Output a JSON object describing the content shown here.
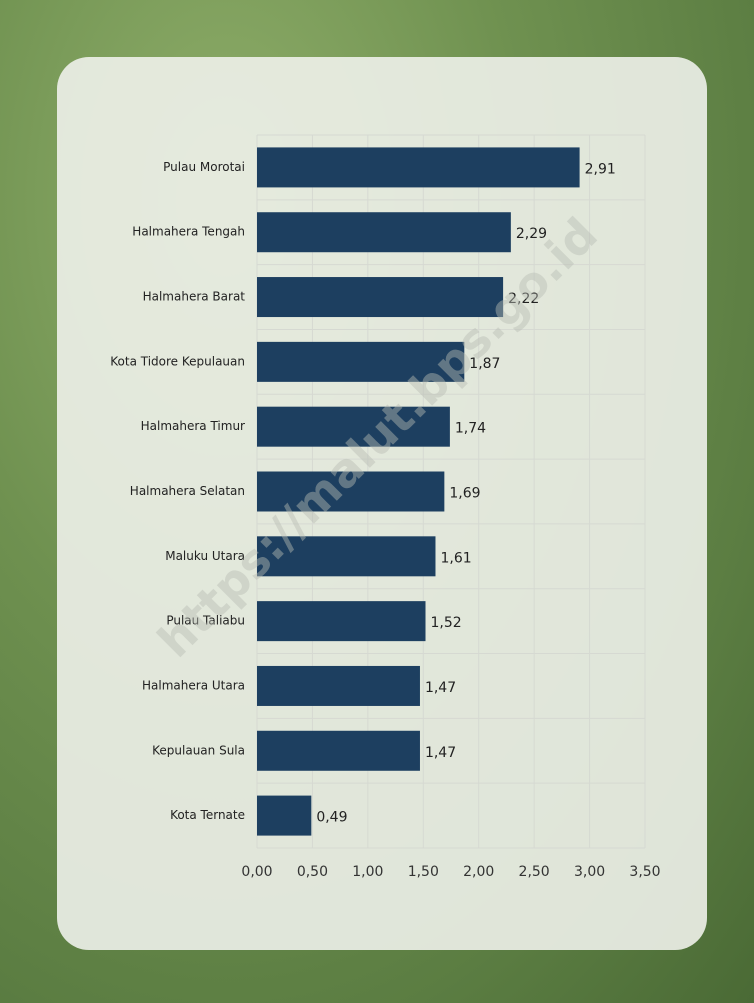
{
  "chart_data": {
    "type": "bar",
    "orientation": "horizontal",
    "categories": [
      "Pulau Morotai",
      "Halmahera Tengah",
      "Halmahera Barat",
      "Kota Tidore Kepulauan",
      "Halmahera Timur",
      "Halmahera Selatan",
      "Maluku Utara",
      "Pulau Taliabu",
      "Halmahera Utara",
      "Kepulauan Sula",
      "Kota Ternate"
    ],
    "values": [
      2.91,
      2.29,
      2.22,
      1.87,
      1.74,
      1.69,
      1.61,
      1.52,
      1.47,
      1.47,
      0.49
    ],
    "value_labels": [
      "2,91",
      "2,29",
      "2,22",
      "1,87",
      "1,74",
      "1,69",
      "1,61",
      "1,52",
      "1,47",
      "1,47",
      "0,49"
    ],
    "color": "#1d3f60",
    "xlim": [
      0,
      3.5
    ],
    "xticks": [
      {
        "value": 0,
        "label": "0,00"
      },
      {
        "value": 0.5,
        "label": "0,50"
      },
      {
        "value": 1,
        "label": "1,00"
      },
      {
        "value": 1.5,
        "label": "1,50"
      },
      {
        "value": 2,
        "label": "2,00"
      },
      {
        "value": 2.5,
        "label": "2,50"
      },
      {
        "value": 3,
        "label": "3,00"
      },
      {
        "value": 3.5,
        "label": "3,50"
      }
    ],
    "grid": true,
    "watermark": "https://malut.bps.go.id"
  }
}
